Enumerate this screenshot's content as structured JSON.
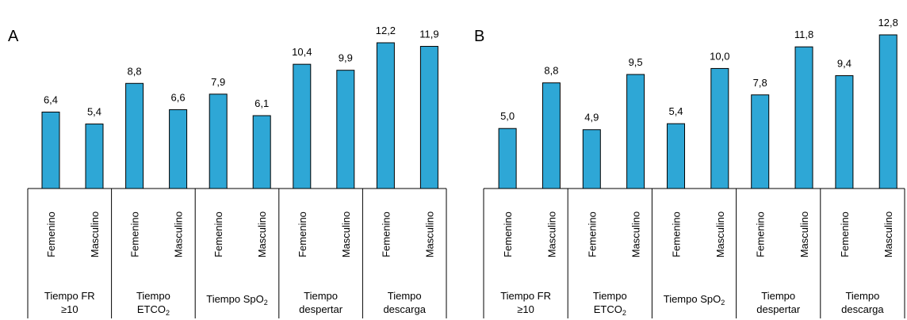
{
  "colors": {
    "bar": "#2ea7d6",
    "outline": "#000000"
  },
  "chart_data": [
    {
      "type": "bar",
      "panel": "A",
      "groups": [
        {
          "label_lines": [
            "Tiempo FR",
            "≥10"
          ],
          "label_sub": []
        },
        {
          "label_lines": [
            "Tiempo",
            "ETCO"
          ],
          "label_sub": [
            "",
            "2"
          ]
        },
        {
          "label_lines": [
            "Tiempo SpO"
          ],
          "label_sub": [
            "2"
          ]
        },
        {
          "label_lines": [
            "Tiempo",
            "despertar"
          ],
          "label_sub": []
        },
        {
          "label_lines": [
            "Tiempo",
            "descarga"
          ],
          "label_sub": []
        }
      ],
      "subcategories": [
        "Femenino",
        "Masculino"
      ],
      "values": [
        [
          6.4,
          5.4
        ],
        [
          8.8,
          6.6
        ],
        [
          7.9,
          6.1
        ],
        [
          10.4,
          9.9
        ],
        [
          12.2,
          11.9
        ]
      ],
      "value_labels": [
        [
          "6,4",
          "5,4"
        ],
        [
          "8,8",
          "6,6"
        ],
        [
          "7,9",
          "6,1"
        ],
        [
          "10,4",
          "9,9"
        ],
        [
          "12,2",
          "11,9"
        ]
      ],
      "ylim": [
        0,
        12.2
      ]
    },
    {
      "type": "bar",
      "panel": "B",
      "groups": [
        {
          "label_lines": [
            "Tiempo FR",
            "≥10"
          ],
          "label_sub": []
        },
        {
          "label_lines": [
            "Tiempo",
            "ETCO"
          ],
          "label_sub": [
            "",
            "2"
          ]
        },
        {
          "label_lines": [
            "Tiempo SpO"
          ],
          "label_sub": [
            "2"
          ]
        },
        {
          "label_lines": [
            "Tiempo",
            "despertar"
          ],
          "label_sub": []
        },
        {
          "label_lines": [
            "Tiempo",
            "descarga"
          ],
          "label_sub": []
        }
      ],
      "subcategories": [
        "Femenino",
        "Masculino"
      ],
      "values": [
        [
          5.0,
          8.8
        ],
        [
          4.9,
          9.5
        ],
        [
          5.4,
          10.0
        ],
        [
          7.8,
          11.8
        ],
        [
          9.4,
          12.8
        ]
      ],
      "value_labels": [
        [
          "5,0",
          "8,8"
        ],
        [
          "4,9",
          "9,5"
        ],
        [
          "5,4",
          "10,0"
        ],
        [
          "7,8",
          "11,8"
        ],
        [
          "9,4",
          "12,8"
        ]
      ],
      "ylim": [
        0,
        12.8
      ]
    }
  ]
}
